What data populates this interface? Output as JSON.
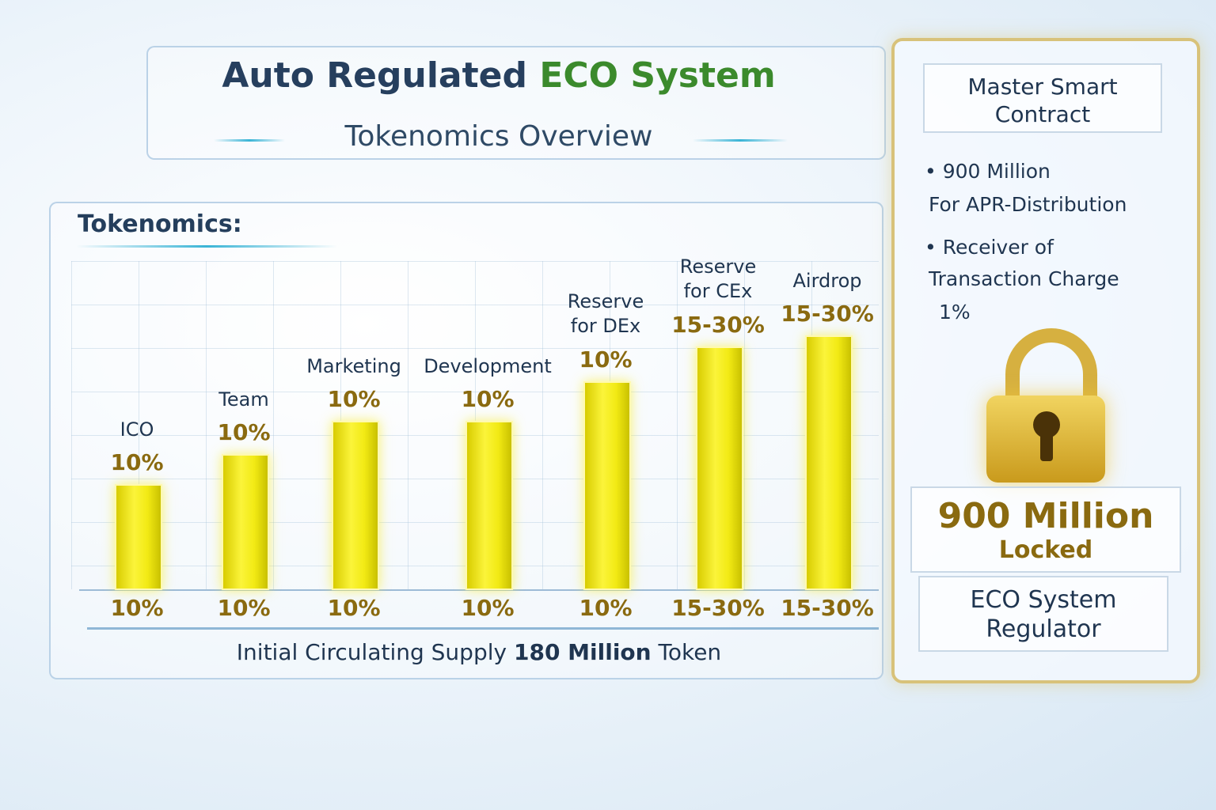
{
  "header": {
    "title": "Auto Regulated",
    "title_accent": "ECO System",
    "subtitle": "Tokenomics Overview"
  },
  "section_label": "Tokenomics:",
  "items": [
    {
      "name": "ICO",
      "share": "10%"
    },
    {
      "name": "Team",
      "share": "10%"
    },
    {
      "name": "Marketing",
      "share": "10%"
    },
    {
      "name": "Development",
      "share": "10%"
    },
    {
      "name": "Reserve for DEx",
      "share": "10%"
    },
    {
      "name": "Reserve for CEx",
      "share": "15-30%"
    },
    {
      "name": "Airdrop",
      "share": "15-30%"
    }
  ],
  "footer": {
    "text": "Initial Circulating Supply",
    "highlight": "180 Million",
    "suffix": "Token"
  },
  "side": {
    "heading": "Master Smart Contract",
    "bullets": [
      {
        "title": "900 Million",
        "detail": "For APR-Distribution"
      },
      {
        "title": "Receiver of",
        "detail": "Transaction Charge",
        "value": "1%"
      }
    ],
    "locked_amount": "900 Million",
    "locked_label": "Locked",
    "footer": "ECO System Regulator"
  }
}
